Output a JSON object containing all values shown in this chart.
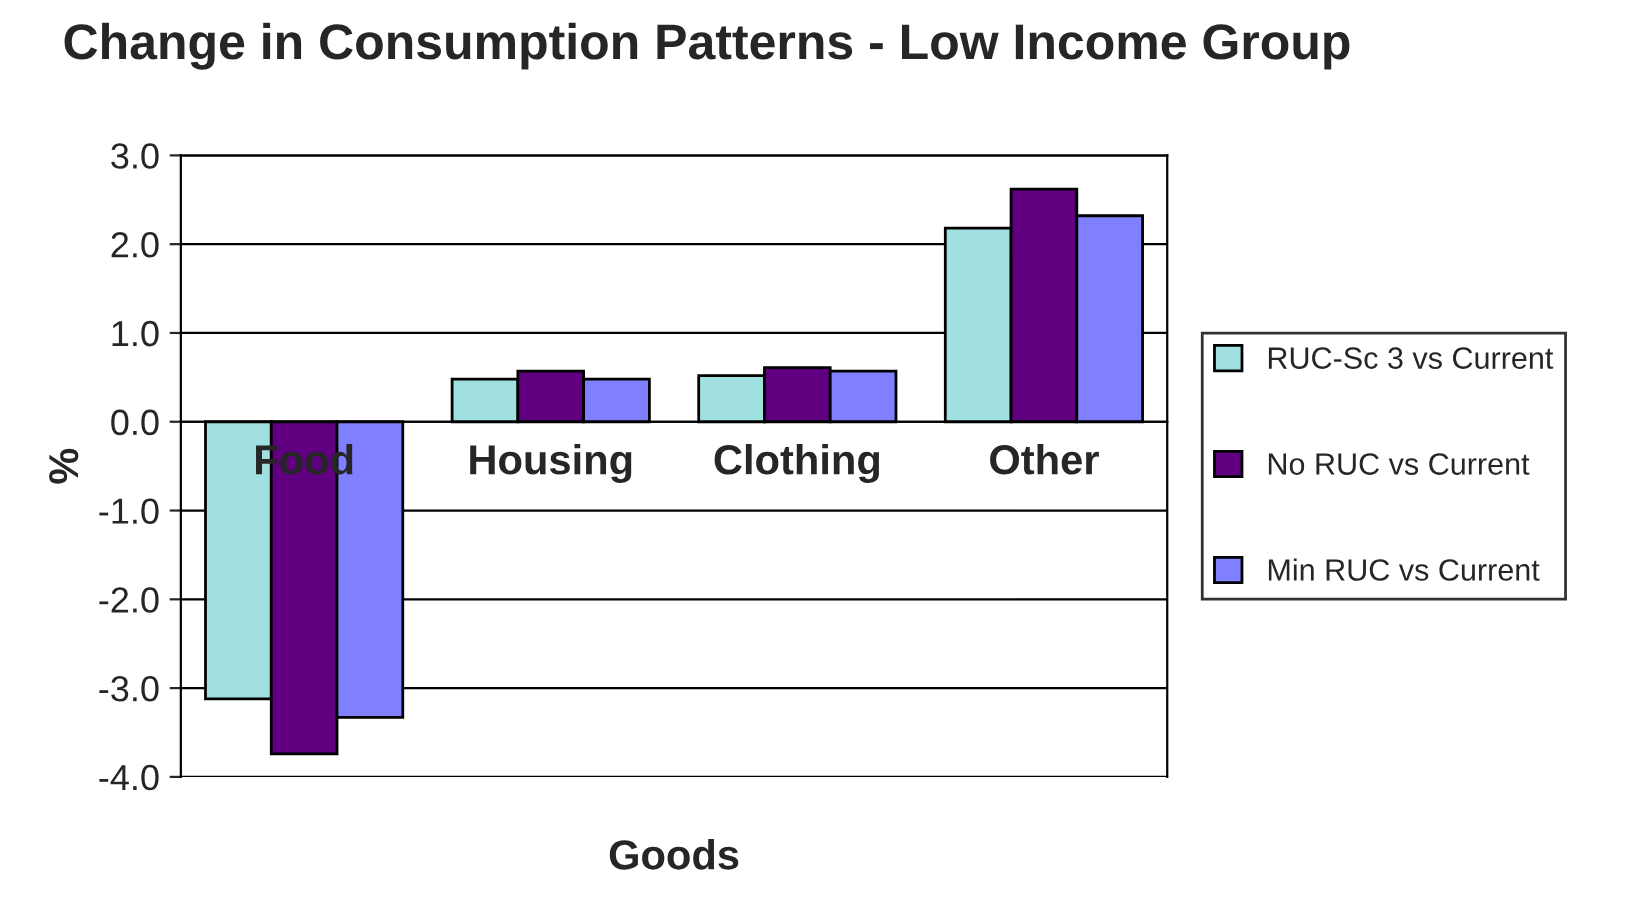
{
  "chart_data": {
    "type": "bar",
    "title": "Change in Consumption Patterns - Low Income Group",
    "xlabel": "Goods",
    "ylabel": "%",
    "categories": [
      "Food",
      "Housing",
      "Clothing",
      "Other"
    ],
    "series": [
      {
        "name": "RUC-Sc 3 vs Current",
        "color": "#a0e0e0",
        "values": [
          -3.12,
          0.48,
          0.52,
          2.18
        ]
      },
      {
        "name": "No RUC vs Current",
        "color": "#600080",
        "values": [
          -3.74,
          0.57,
          0.61,
          2.62
        ]
      },
      {
        "name": "Min RUC vs Current",
        "color": "#8080ff",
        "values": [
          -3.33,
          0.48,
          0.57,
          2.32
        ]
      }
    ],
    "ylim": [
      -4.0,
      3.0
    ],
    "yticks": [
      {
        "value": -4,
        "label": "-4.0"
      },
      {
        "value": -3,
        "label": "-3.0"
      },
      {
        "value": -2,
        "label": "-2.0"
      },
      {
        "value": -1,
        "label": "-1.0"
      },
      {
        "value": 0,
        "label": "0.0"
      },
      {
        "value": 1,
        "label": "1.0"
      },
      {
        "value": 2,
        "label": "2.0"
      },
      {
        "value": 3,
        "label": "3.0"
      }
    ],
    "grid": "y",
    "legend": "right"
  }
}
